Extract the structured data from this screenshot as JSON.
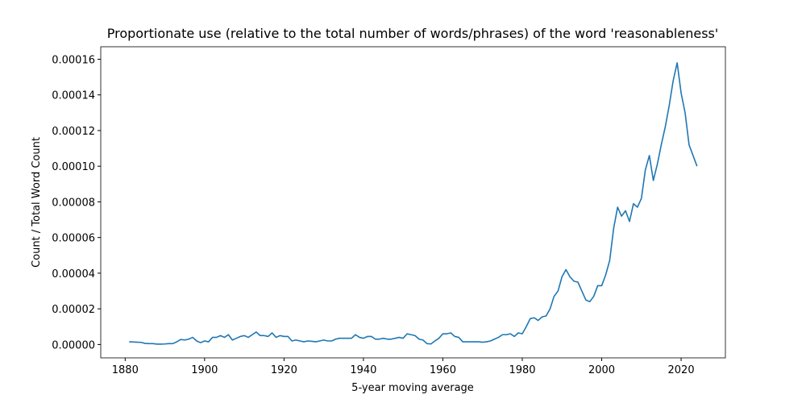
{
  "chart_data": {
    "type": "line",
    "title": "Proportionate use (relative to the total number of words/phrases) of the word 'reasonableness'",
    "xlabel": "5-year moving average",
    "ylabel": "Count / Total Word Count",
    "x": [
      1881,
      1882,
      1883,
      1884,
      1885,
      1886,
      1887,
      1888,
      1889,
      1890,
      1891,
      1892,
      1893,
      1894,
      1895,
      1896,
      1897,
      1898,
      1899,
      1900,
      1901,
      1902,
      1903,
      1904,
      1905,
      1906,
      1907,
      1908,
      1909,
      1910,
      1911,
      1912,
      1913,
      1914,
      1915,
      1916,
      1917,
      1918,
      1919,
      1920,
      1921,
      1922,
      1923,
      1924,
      1925,
      1926,
      1927,
      1928,
      1929,
      1930,
      1931,
      1932,
      1933,
      1934,
      1935,
      1936,
      1937,
      1938,
      1939,
      1940,
      1941,
      1942,
      1943,
      1944,
      1945,
      1946,
      1947,
      1948,
      1949,
      1950,
      1951,
      1952,
      1953,
      1954,
      1955,
      1956,
      1957,
      1958,
      1959,
      1960,
      1961,
      1962,
      1963,
      1964,
      1965,
      1966,
      1967,
      1968,
      1969,
      1970,
      1971,
      1972,
      1973,
      1974,
      1975,
      1976,
      1977,
      1978,
      1979,
      1980,
      1981,
      1982,
      1983,
      1984,
      1985,
      1986,
      1987,
      1988,
      1989,
      1990,
      1991,
      1992,
      1993,
      1994,
      1995,
      1996,
      1997,
      1998,
      1999,
      2000,
      2001,
      2002,
      2003,
      2004,
      2005,
      2006,
      2007,
      2008,
      2009,
      2010,
      2011,
      2012,
      2013,
      2014,
      2015,
      2016,
      2017,
      2018,
      2019,
      2020,
      2021,
      2022,
      2023,
      2024
    ],
    "series": [
      {
        "name": "reasonableness",
        "color": "#1f77b4",
        "values": [
          1.5e-06,
          1.4e-06,
          1.3e-06,
          1.2e-06,
          6e-07,
          5e-07,
          5e-07,
          2e-07,
          2e-07,
          3e-07,
          5e-07,
          5e-07,
          1.5e-06,
          2.8e-06,
          2.5e-06,
          3e-06,
          4e-06,
          2e-06,
          1e-06,
          2e-06,
          1.5e-06,
          4e-06,
          4e-06,
          5e-06,
          4e-06,
          5.5e-06,
          2.5e-06,
          3.5e-06,
          4.5e-06,
          5e-06,
          4e-06,
          5.5e-06,
          7e-06,
          5e-06,
          5e-06,
          4.5e-06,
          6.5e-06,
          4e-06,
          5e-06,
          4.5e-06,
          4.5e-06,
          2e-06,
          2.5e-06,
          2e-06,
          1.5e-06,
          2e-06,
          1.8e-06,
          1.5e-06,
          2e-06,
          2.5e-06,
          2e-06,
          2e-06,
          3e-06,
          3.5e-06,
          3.5e-06,
          3.5e-06,
          3.5e-06,
          5.5e-06,
          4e-06,
          3.5e-06,
          4.5e-06,
          4.5e-06,
          3e-06,
          3e-06,
          3.5e-06,
          3e-06,
          3e-06,
          3.5e-06,
          4e-06,
          3.5e-06,
          6e-06,
          5.5e-06,
          5e-06,
          3e-06,
          2.5e-06,
          5e-07,
          3e-07,
          2e-06,
          3.5e-06,
          6e-06,
          6e-06,
          6.5e-06,
          4.5e-06,
          4e-06,
          1.5e-06,
          1.5e-06,
          1.5e-06,
          1.5e-06,
          1.5e-06,
          1.3e-06,
          1.5e-06,
          2e-06,
          3e-06,
          4e-06,
          5.5e-06,
          5.5e-06,
          6e-06,
          4.5e-06,
          6.5e-06,
          6e-06,
          1e-05,
          1.45e-05,
          1.5e-05,
          1.35e-05,
          1.55e-05,
          1.6e-05,
          2e-05,
          2.7e-05,
          3e-05,
          3.8e-05,
          4.2e-05,
          3.8e-05,
          3.55e-05,
          3.5e-05,
          3e-05,
          2.5e-05,
          2.4e-05,
          2.7e-05,
          3.3e-05,
          3.3e-05,
          3.9e-05,
          4.7e-05,
          6.5e-05,
          7.7e-05,
          7.2e-05,
          7.5e-05,
          6.9e-05,
          7.9e-05,
          7.7e-05,
          8.2e-05,
          9.8e-05,
          0.000106,
          9.2e-05,
          0.000101,
          0.000112,
          0.000122,
          0.000134,
          0.000148,
          0.000158,
          0.000141,
          0.00013,
          0.000112,
          0.000106,
          0.0001
        ]
      }
    ],
    "xlim": [
      1873.85,
      2031.15
    ],
    "xticks": [
      1880,
      1900,
      1920,
      1940,
      1960,
      1980,
      2000,
      2020
    ],
    "ylim": [
      -7.5e-06,
      0.000167
    ],
    "yticks": [
      {
        "value": 0,
        "label": "0.00000"
      },
      {
        "value": 2e-05,
        "label": "0.00002"
      },
      {
        "value": 4e-05,
        "label": "0.00004"
      },
      {
        "value": 6e-05,
        "label": "0.00006"
      },
      {
        "value": 8e-05,
        "label": "0.00008"
      },
      {
        "value": 0.0001,
        "label": "0.00010"
      },
      {
        "value": 0.00012,
        "label": "0.00012"
      },
      {
        "value": 0.00014,
        "label": "0.00014"
      },
      {
        "value": 0.00016,
        "label": "0.00016"
      }
    ],
    "grid": false
  }
}
